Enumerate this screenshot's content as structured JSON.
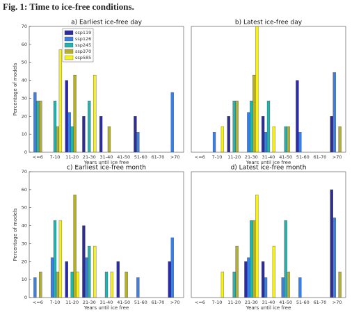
{
  "figure_title": "Fig. 1: Time to ice-free conditions.",
  "chart_data": [
    {
      "type": "bar",
      "title": "a) Earliest ice-free day",
      "x_label": "Years until ice free",
      "y_label": "Percentage of models",
      "categories": [
        "<=6",
        "7-10",
        "11-20",
        "21-30",
        "31-40",
        "41-50",
        "51-60",
        "61-70",
        ">70"
      ],
      "ylim": [
        0,
        70
      ],
      "yticks": [
        0,
        10,
        20,
        30,
        40,
        50,
        60,
        70
      ],
      "legend": "upper left",
      "series": [
        {
          "name": "ssp119",
          "color": "#2c2c9c",
          "values": [
            0,
            0,
            40,
            20,
            20,
            0,
            20,
            0,
            0
          ]
        },
        {
          "name": "ssp126",
          "color": "#3b7fe3",
          "values": [
            33.3,
            0,
            22.2,
            0,
            0,
            0,
            11.1,
            0,
            33.3
          ]
        },
        {
          "name": "ssp245",
          "color": "#22b3ae",
          "values": [
            28.6,
            28.6,
            14.3,
            28.6,
            0,
            0,
            0,
            0,
            0
          ]
        },
        {
          "name": "ssp370",
          "color": "#b3ae2e",
          "values": [
            28.6,
            14.3,
            42.9,
            0,
            14.3,
            0,
            0,
            0,
            0
          ]
        },
        {
          "name": "ssp585",
          "color": "#f6f01e",
          "values": [
            0,
            57.1,
            0,
            42.9,
            0,
            0,
            0,
            0,
            0
          ]
        }
      ]
    },
    {
      "type": "bar",
      "title": "b) Latest ice-free day",
      "x_label": "Years until ice free",
      "categories": [
        "<=6",
        "7-10",
        "11-20",
        "21-30",
        "31-40",
        "41-50",
        "51-60",
        "61-70",
        ">70"
      ],
      "ylim": [
        0,
        70
      ],
      "series": [
        {
          "color": "#2c2c9c",
          "values": [
            0,
            0,
            20,
            0,
            20,
            0,
            40,
            0,
            20
          ]
        },
        {
          "color": "#3b7fe3",
          "values": [
            0,
            11.1,
            0,
            22.2,
            11.1,
            0,
            11.1,
            0,
            44.4
          ]
        },
        {
          "color": "#22b3ae",
          "values": [
            0,
            0,
            28.6,
            28.6,
            28.6,
            14.3,
            0,
            0,
            0
          ]
        },
        {
          "color": "#b3ae2e",
          "values": [
            0,
            0,
            28.6,
            42.9,
            0,
            14.3,
            0,
            0,
            14.3
          ]
        },
        {
          "color": "#f6f01e",
          "values": [
            0,
            14.3,
            0,
            71.4,
            14.3,
            0,
            0,
            0,
            0
          ]
        }
      ]
    },
    {
      "type": "bar",
      "title": "c) Earliest ice-free month",
      "x_label": "Years until ice free",
      "y_label": "Percentage of models",
      "categories": [
        "<=6",
        "7-10",
        "11-20",
        "21-30",
        "31-40",
        "41-50",
        "51-60",
        "61-70",
        ">70"
      ],
      "ylim": [
        0,
        70
      ],
      "yticks": [
        0,
        10,
        20,
        30,
        40,
        50,
        60,
        70
      ],
      "series": [
        {
          "color": "#2c2c9c",
          "values": [
            0,
            0,
            20,
            40,
            0,
            20,
            0,
            0,
            20
          ]
        },
        {
          "color": "#3b7fe3",
          "values": [
            11.1,
            22.2,
            0,
            22.2,
            0,
            0,
            11.1,
            0,
            33.3
          ]
        },
        {
          "color": "#22b3ae",
          "values": [
            0,
            42.9,
            14.3,
            28.6,
            14.3,
            0,
            0,
            0,
            0
          ]
        },
        {
          "color": "#b3ae2e",
          "values": [
            14.3,
            14.3,
            57.1,
            0,
            0,
            14.3,
            0,
            0,
            0
          ]
        },
        {
          "color": "#f6f01e",
          "values": [
            0,
            42.9,
            14.3,
            28.6,
            14.3,
            0,
            0,
            0,
            0
          ]
        }
      ]
    },
    {
      "type": "bar",
      "title": "d) Latest ice-free month",
      "x_label": "Years until ice free",
      "categories": [
        "<=6",
        "7-10",
        "11-20",
        "21-30",
        "31-40",
        "41-50",
        "51-60",
        "61-70",
        ">70"
      ],
      "ylim": [
        0,
        70
      ],
      "series": [
        {
          "color": "#2c2c9c",
          "values": [
            0,
            0,
            0,
            20,
            20,
            0,
            0,
            0,
            60
          ]
        },
        {
          "color": "#3b7fe3",
          "values": [
            0,
            0,
            0,
            22.2,
            11.1,
            11.1,
            11.1,
            0,
            44.4
          ]
        },
        {
          "color": "#22b3ae",
          "values": [
            0,
            0,
            14.3,
            42.9,
            0,
            42.9,
            0,
            0,
            0
          ]
        },
        {
          "color": "#b3ae2e",
          "values": [
            0,
            0,
            28.6,
            42.9,
            0,
            14.3,
            0,
            0,
            14.3
          ]
        },
        {
          "color": "#f6f01e",
          "values": [
            0,
            14.3,
            0,
            57.1,
            28.6,
            0,
            0,
            0,
            0
          ]
        }
      ]
    }
  ]
}
